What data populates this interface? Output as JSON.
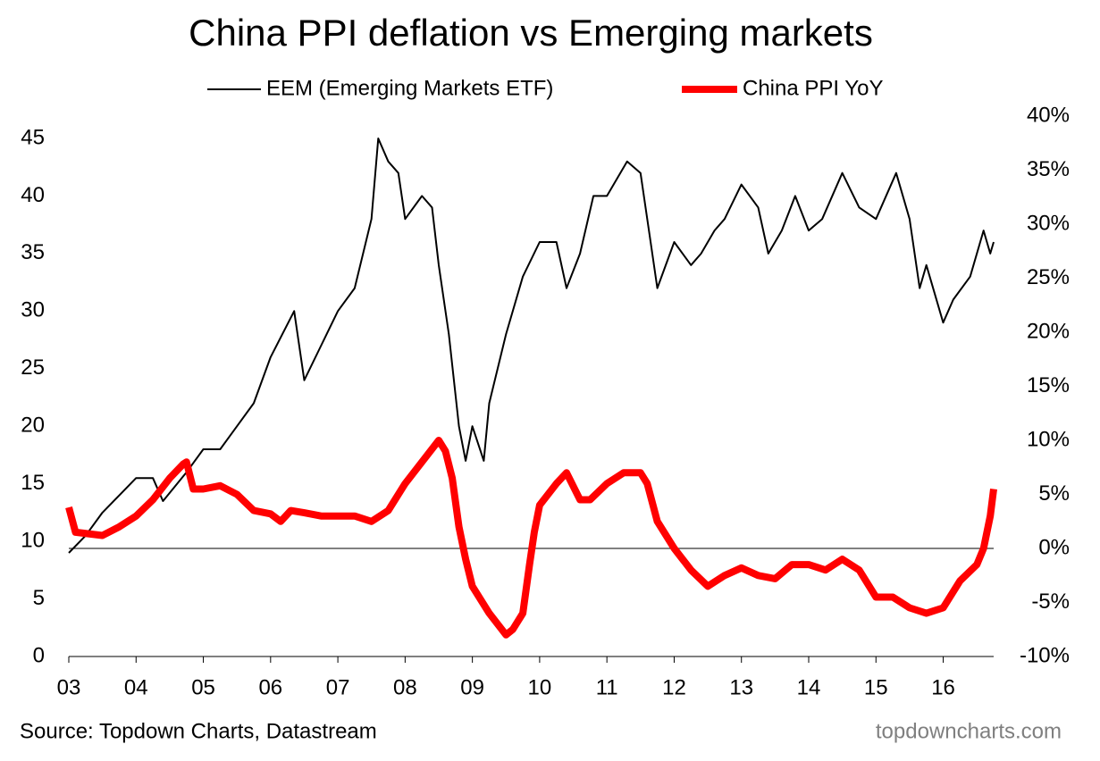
{
  "chart_data": {
    "type": "line",
    "title": "China PPI deflation vs Emerging markets",
    "source": "Source: Topdown Charts, Datastream",
    "watermark": "topdowncharts.com",
    "xlim": [
      2003,
      2016.75
    ],
    "xticks": [
      {
        "value": 2003,
        "label": "03"
      },
      {
        "value": 2004,
        "label": "04"
      },
      {
        "value": 2005,
        "label": "05"
      },
      {
        "value": 2006,
        "label": "06"
      },
      {
        "value": 2007,
        "label": "07"
      },
      {
        "value": 2008,
        "label": "08"
      },
      {
        "value": 2009,
        "label": "09"
      },
      {
        "value": 2010,
        "label": "10"
      },
      {
        "value": 2011,
        "label": "11"
      },
      {
        "value": 2012,
        "label": "12"
      },
      {
        "value": 2013,
        "label": "13"
      },
      {
        "value": 2014,
        "label": "14"
      },
      {
        "value": 2015,
        "label": "15"
      },
      {
        "value": 2016,
        "label": "16"
      }
    ],
    "ylim": [
      0,
      45
    ],
    "yticks": [
      0,
      5,
      10,
      15,
      20,
      25,
      30,
      35,
      40,
      45
    ],
    "y2lim": [
      -10,
      40
    ],
    "y2ticks": [
      {
        "value": -10,
        "label": "-10%"
      },
      {
        "value": -5,
        "label": "-5%"
      },
      {
        "value": 0,
        "label": "0%"
      },
      {
        "value": 5,
        "label": "5%"
      },
      {
        "value": 10,
        "label": "10%"
      },
      {
        "value": 15,
        "label": "15%"
      },
      {
        "value": 20,
        "label": "20%"
      },
      {
        "value": 25,
        "label": "25%"
      },
      {
        "value": 30,
        "label": "30%"
      },
      {
        "value": 35,
        "label": "35%"
      },
      {
        "value": 40,
        "label": "40%"
      }
    ],
    "legend": "top",
    "series": [
      {
        "name": "EEM (Emerging Markets ETF)",
        "color": "#000000",
        "width": 2,
        "x": [
          2003.0,
          2003.25,
          2003.5,
          2003.75,
          2004.0,
          2004.25,
          2004.4,
          2004.75,
          2005.0,
          2005.25,
          2005.5,
          2005.75,
          2006.0,
          2006.35,
          2006.5,
          2006.75,
          2007.0,
          2007.25,
          2007.5,
          2007.6,
          2007.75,
          2007.9,
          2008.0,
          2008.25,
          2008.4,
          2008.5,
          2008.65,
          2008.8,
          2008.9,
          2009.0,
          2009.17,
          2009.25,
          2009.5,
          2009.75,
          2010.0,
          2010.25,
          2010.4,
          2010.6,
          2010.8,
          2011.0,
          2011.3,
          2011.5,
          2011.65,
          2011.75,
          2012.0,
          2012.25,
          2012.4,
          2012.6,
          2012.75,
          2013.0,
          2013.25,
          2013.4,
          2013.6,
          2013.8,
          2014.0,
          2014.2,
          2014.5,
          2014.75,
          2015.0,
          2015.3,
          2015.5,
          2015.65,
          2015.75,
          2016.0,
          2016.15,
          2016.4,
          2016.6,
          2016.7,
          2016.75
        ],
        "values": [
          9.0,
          10.5,
          12.5,
          14,
          15.5,
          15.5,
          13.5,
          16,
          18,
          18,
          20,
          22,
          26,
          30,
          24,
          27,
          30,
          32,
          38,
          45,
          43,
          42,
          38,
          40,
          39,
          34,
          28,
          20,
          17,
          20,
          17,
          22,
          28,
          33,
          36,
          36,
          32,
          35,
          40,
          40,
          43,
          42,
          36,
          32,
          36,
          34,
          35,
          37,
          38,
          41,
          39,
          35,
          37,
          40,
          37,
          38,
          42,
          39,
          38,
          42,
          38,
          32,
          34,
          29,
          31,
          33,
          37,
          35,
          36
        ]
      },
      {
        "name": "China PPI YoY",
        "color": "#ff0000",
        "width": 8,
        "axis": "y2",
        "x": [
          2003.0,
          2003.1,
          2003.5,
          2003.75,
          2004.0,
          2004.25,
          2004.5,
          2004.7,
          2004.75,
          2004.85,
          2005.0,
          2005.25,
          2005.5,
          2005.75,
          2006.0,
          2006.15,
          2006.3,
          2006.5,
          2006.75,
          2007.0,
          2007.25,
          2007.5,
          2007.75,
          2008.0,
          2008.25,
          2008.5,
          2008.6,
          2008.7,
          2008.8,
          2008.9,
          2009.0,
          2009.25,
          2009.5,
          2009.6,
          2009.75,
          2009.85,
          2009.92,
          2010.0,
          2010.25,
          2010.4,
          2010.6,
          2010.75,
          2011.0,
          2011.25,
          2011.5,
          2011.6,
          2011.75,
          2012.0,
          2012.25,
          2012.5,
          2012.75,
          2013.0,
          2013.25,
          2013.5,
          2013.75,
          2014.0,
          2014.25,
          2014.5,
          2014.75,
          2015.0,
          2015.25,
          2015.5,
          2015.75,
          2016.0,
          2016.25,
          2016.5,
          2016.6,
          2016.7,
          2016.75
        ],
        "values": [
          3.8,
          1.5,
          1.2,
          2.0,
          3.0,
          4.5,
          6.5,
          7.8,
          8,
          5.5,
          5.5,
          5.8,
          5.0,
          3.5,
          3.2,
          2.5,
          3.5,
          3.3,
          3.0,
          3.0,
          3.0,
          2.5,
          3.5,
          6.0,
          8.0,
          10.0,
          9.0,
          6.5,
          2.0,
          -1.0,
          -3.5,
          -6,
          -8,
          -7.5,
          -6,
          -1.5,
          1.5,
          4,
          6,
          7,
          4.5,
          4.5,
          6,
          7,
          7,
          6,
          2.5,
          0,
          -2,
          -3.5,
          -2.5,
          -1.8,
          -2.5,
          -2.8,
          -1.5,
          -1.5,
          -2,
          -1,
          -2,
          -4.5,
          -4.5,
          -5.5,
          -6,
          -5.5,
          -3,
          -1.5,
          0,
          3,
          5.5
        ]
      }
    ]
  }
}
